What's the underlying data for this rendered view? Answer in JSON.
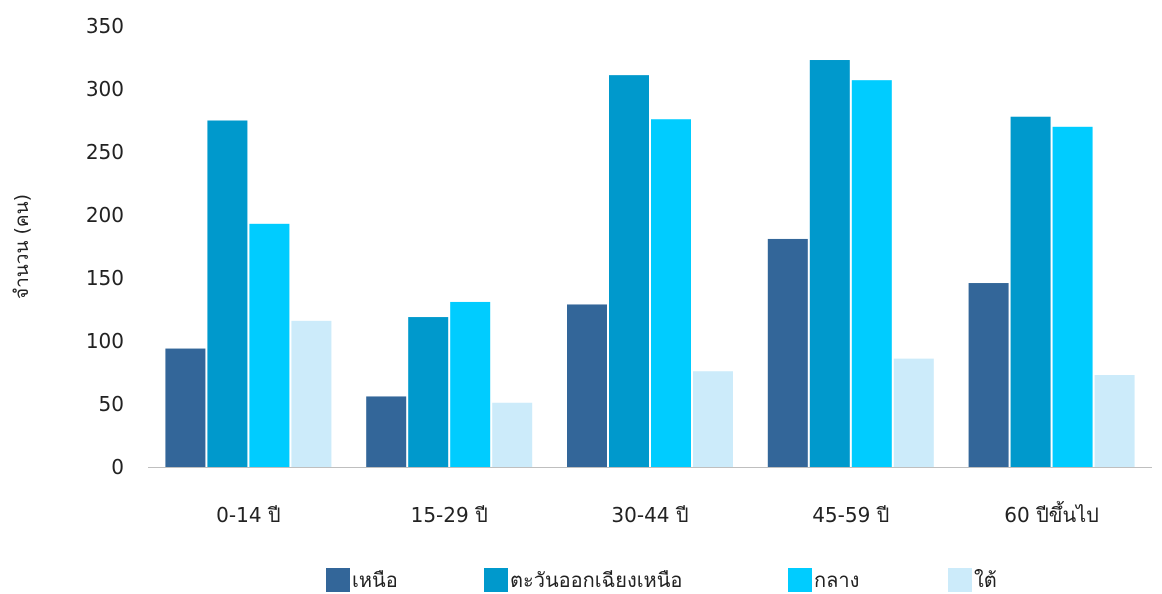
{
  "chart_data": {
    "type": "bar",
    "title": "",
    "xlabel": "",
    "ylabel": "จำนวน (คน)",
    "ylim": [
      0,
      350
    ],
    "yticks": [
      0,
      50,
      100,
      150,
      200,
      250,
      300,
      350
    ],
    "grid": false,
    "legend_position": "bottom",
    "categories": [
      "0-14 ปี",
      "15-29 ปี",
      "30-44 ปี",
      "45-59 ปี",
      "60 ปีขึ้นไป"
    ],
    "series": [
      {
        "name": "เหนือ",
        "color": "#336699",
        "values": [
          94,
          56,
          129,
          181,
          146
        ]
      },
      {
        "name": "ตะวันออกเฉียงเหนือ",
        "color": "#0099CC",
        "values": [
          275,
          119,
          311,
          323,
          278
        ]
      },
      {
        "name": "กลาง",
        "color": "#00CCFF",
        "values": [
          193,
          131,
          276,
          307,
          270
        ]
      },
      {
        "name": "ใต้",
        "color": "#CCEBFA",
        "values": [
          116,
          51,
          76,
          86,
          73
        ]
      }
    ]
  }
}
